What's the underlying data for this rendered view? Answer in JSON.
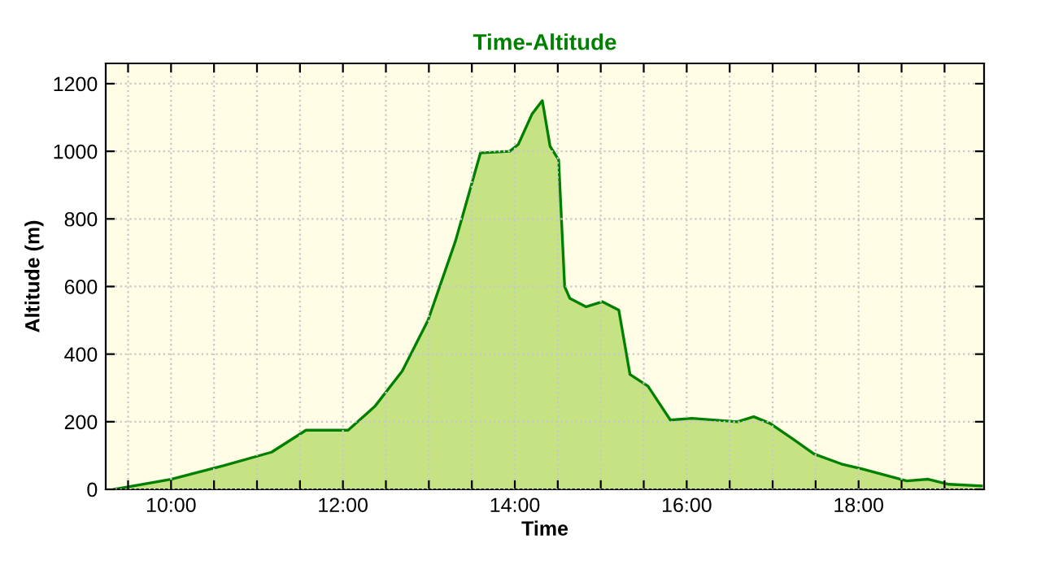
{
  "chart_data": {
    "type": "area",
    "title": "Time-Altitude",
    "xlabel": "Time",
    "ylabel": "Altitude (m)",
    "x": [
      9.34,
      10.0,
      10.61,
      11.17,
      11.57,
      12.06,
      12.37,
      12.69,
      12.99,
      13.31,
      13.6,
      13.94,
      14.04,
      14.2,
      14.32,
      14.41,
      14.51,
      14.58,
      14.64,
      14.83,
      15.02,
      15.21,
      15.34,
      15.55,
      15.81,
      16.06,
      16.59,
      16.78,
      16.97,
      17.23,
      17.48,
      17.8,
      18.05,
      18.56,
      18.81,
      19.05,
      19.43
    ],
    "series": [
      {
        "color": "#008000",
        "values": [
          0,
          30,
          70,
          110,
          175,
          175,
          245,
          350,
          500,
          735,
          995,
          1000,
          1020,
          1110,
          1150,
          1015,
          975,
          600,
          565,
          540,
          555,
          530,
          340,
          305,
          205,
          210,
          200,
          215,
          195,
          150,
          105,
          75,
          60,
          25,
          30,
          15,
          10
        ]
      }
    ],
    "xlim": [
      9.24,
      19.46
    ],
    "xticks": [
      {
        "value": 9.5,
        "label": null
      },
      {
        "value": 10,
        "label": "10:00"
      },
      {
        "value": 10.5,
        "label": null
      },
      {
        "value": 11,
        "label": null
      },
      {
        "value": 11.5,
        "label": null
      },
      {
        "value": 12,
        "label": "12:00"
      },
      {
        "value": 12.5,
        "label": null
      },
      {
        "value": 13,
        "label": null
      },
      {
        "value": 13.5,
        "label": null
      },
      {
        "value": 14,
        "label": "14:00"
      },
      {
        "value": 14.5,
        "label": null
      },
      {
        "value": 15,
        "label": null
      },
      {
        "value": 15.5,
        "label": null
      },
      {
        "value": 16,
        "label": "16:00"
      },
      {
        "value": 16.5,
        "label": null
      },
      {
        "value": 17,
        "label": null
      },
      {
        "value": 17.5,
        "label": null
      },
      {
        "value": 18,
        "label": "18:00"
      },
      {
        "value": 18.5,
        "label": null
      },
      {
        "value": 19,
        "label": null
      }
    ],
    "ylim": [
      0,
      1260
    ],
    "yticks": [
      0,
      200,
      400,
      600,
      800,
      1000,
      1200
    ],
    "grid": true
  }
}
